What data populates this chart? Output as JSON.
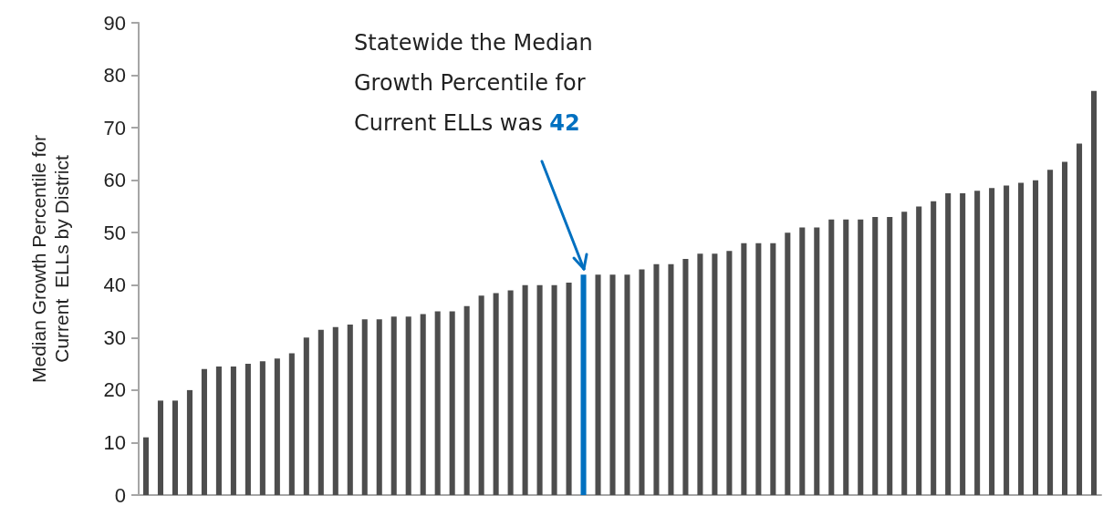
{
  "chart_data": {
    "type": "bar",
    "ylabel": "Median Growth Percentile for\nCurrent  ELLs by District",
    "categories": [
      null,
      null,
      null,
      null,
      null,
      null,
      null,
      null,
      null,
      null,
      null,
      null,
      null,
      null,
      null,
      null,
      null,
      null,
      null,
      null,
      null,
      null,
      null,
      null,
      null,
      null,
      null,
      null,
      null,
      null,
      null,
      null,
      null,
      null,
      null,
      null,
      null,
      null,
      null,
      null,
      null,
      null,
      null,
      null,
      null,
      null,
      null,
      null,
      null,
      null,
      null,
      null,
      null,
      null,
      null,
      null,
      null,
      null,
      null,
      null,
      null,
      null,
      null,
      null,
      null,
      null
    ],
    "values": [
      11,
      18,
      18,
      20,
      24,
      24.5,
      24.5,
      25,
      25.5,
      26,
      27,
      30,
      31.5,
      32,
      32.5,
      33.5,
      33.5,
      34,
      34,
      34.5,
      35,
      35,
      36,
      38,
      38.5,
      39,
      40,
      40,
      40,
      40.5,
      42,
      42,
      42,
      42,
      43,
      44,
      44,
      45,
      46,
      46,
      46.5,
      48,
      48,
      48,
      50,
      51,
      51,
      52.5,
      52.5,
      52.5,
      53,
      53,
      54,
      55,
      56,
      57.5,
      57.5,
      58,
      58.5,
      59,
      59.5,
      60,
      62,
      63.5,
      67,
      77
    ],
    "colors": [
      "#4d4d4d",
      "#4d4d4d",
      "#4d4d4d",
      "#4d4d4d",
      "#4d4d4d",
      "#4d4d4d",
      "#4d4d4d",
      "#4d4d4d",
      "#4d4d4d",
      "#4d4d4d",
      "#4d4d4d",
      "#4d4d4d",
      "#4d4d4d",
      "#4d4d4d",
      "#4d4d4d",
      "#4d4d4d",
      "#4d4d4d",
      "#4d4d4d",
      "#4d4d4d",
      "#4d4d4d",
      "#4d4d4d",
      "#4d4d4d",
      "#4d4d4d",
      "#4d4d4d",
      "#4d4d4d",
      "#4d4d4d",
      "#4d4d4d",
      "#4d4d4d",
      "#4d4d4d",
      "#4d4d4d",
      "#0070c0",
      "#4d4d4d",
      "#4d4d4d",
      "#4d4d4d",
      "#4d4d4d",
      "#4d4d4d",
      "#4d4d4d",
      "#4d4d4d",
      "#4d4d4d",
      "#4d4d4d",
      "#4d4d4d",
      "#4d4d4d",
      "#4d4d4d",
      "#4d4d4d",
      "#4d4d4d",
      "#4d4d4d",
      "#4d4d4d",
      "#4d4d4d",
      "#4d4d4d",
      "#4d4d4d",
      "#4d4d4d",
      "#4d4d4d",
      "#4d4d4d",
      "#4d4d4d",
      "#4d4d4d",
      "#4d4d4d",
      "#4d4d4d",
      "#4d4d4d",
      "#4d4d4d",
      "#4d4d4d",
      "#4d4d4d",
      "#4d4d4d",
      "#4d4d4d",
      "#4d4d4d",
      "#4d4d4d",
      "#4d4d4d"
    ],
    "ylim": [
      0,
      90
    ],
    "yticks": [
      0,
      10,
      20,
      30,
      40,
      50,
      60,
      70,
      80,
      90
    ],
    "grid": false,
    "annotations": [
      "Statewide the Median\nGrowth Percentile for\nCurrent ELLs was 42"
    ]
  }
}
